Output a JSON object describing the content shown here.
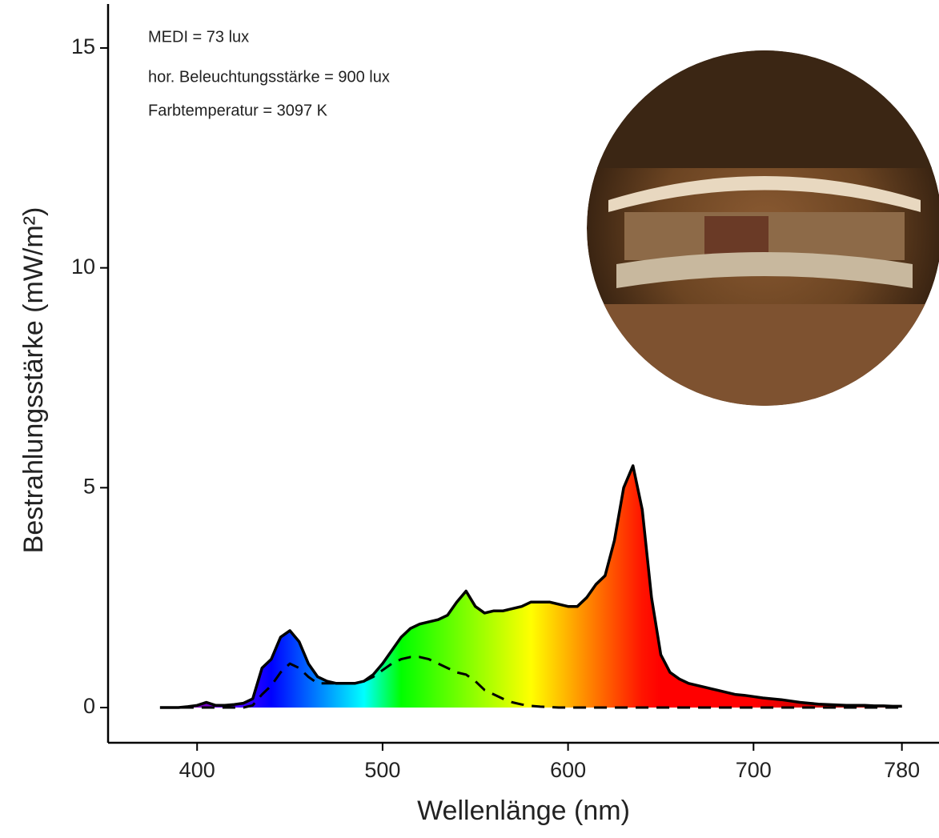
{
  "chart_data": {
    "type": "area",
    "annotations": [
      "MEDI = 73 lux",
      "hor. Beleuchtungsstärke = 900 lux",
      "Farbtemperatur = 3097 K"
    ],
    "x_label": "Wellenlänge (nm)",
    "y_label": "Bestrahlungsstärke (mW/m²)",
    "x": [
      380,
      385,
      390,
      395,
      400,
      405,
      410,
      415,
      420,
      425,
      430,
      435,
      440,
      445,
      450,
      455,
      460,
      465,
      470,
      475,
      480,
      485,
      490,
      495,
      500,
      505,
      510,
      515,
      520,
      525,
      530,
      535,
      540,
      545,
      550,
      555,
      560,
      565,
      570,
      575,
      580,
      585,
      590,
      595,
      600,
      605,
      610,
      615,
      620,
      625,
      630,
      635,
      640,
      645,
      650,
      655,
      660,
      665,
      670,
      675,
      680,
      685,
      690,
      695,
      700,
      705,
      710,
      715,
      720,
      725,
      730,
      735,
      740,
      745,
      750,
      755,
      760,
      765,
      770,
      775,
      780
    ],
    "series": [
      {
        "color": "#000000",
        "fill": "spectrum",
        "style": "solid",
        "values": [
          0,
          0,
          0,
          0.02,
          0.05,
          0.12,
          0.05,
          0.05,
          0.07,
          0.1,
          0.2,
          0.9,
          1.1,
          1.6,
          1.75,
          1.5,
          1.0,
          0.7,
          0.6,
          0.55,
          0.55,
          0.55,
          0.6,
          0.75,
          1.0,
          1.3,
          1.6,
          1.8,
          1.9,
          1.95,
          2.0,
          2.1,
          2.4,
          2.65,
          2.3,
          2.15,
          2.2,
          2.2,
          2.25,
          2.3,
          2.4,
          2.4,
          2.4,
          2.35,
          2.3,
          2.3,
          2.5,
          2.8,
          3.0,
          3.8,
          5.0,
          5.5,
          4.5,
          2.5,
          1.2,
          0.8,
          0.65,
          0.55,
          0.5,
          0.45,
          0.4,
          0.35,
          0.3,
          0.28,
          0.25,
          0.22,
          0.2,
          0.18,
          0.15,
          0.12,
          0.1,
          0.08,
          0.07,
          0.06,
          0.05,
          0.05,
          0.05,
          0.04,
          0.04,
          0.03,
          0.03
        ]
      },
      {
        "color": "#000000",
        "style": "dashed",
        "values": [
          0,
          0,
          0,
          0,
          0,
          0,
          0,
          0,
          0,
          0,
          0.05,
          0.3,
          0.5,
          0.8,
          1.0,
          0.9,
          0.7,
          0.55,
          0.55,
          0.55,
          0.55,
          0.55,
          0.6,
          0.7,
          0.85,
          1.0,
          1.1,
          1.15,
          1.15,
          1.1,
          1.0,
          0.9,
          0.8,
          0.75,
          0.6,
          0.4,
          0.3,
          0.2,
          0.12,
          0.07,
          0.04,
          0.02,
          0.01,
          0,
          0,
          0,
          0,
          0,
          0,
          0,
          0,
          0,
          0,
          0,
          0,
          0,
          0,
          0,
          0,
          0,
          0,
          0,
          0,
          0,
          0,
          0,
          0,
          0,
          0,
          0,
          0,
          0,
          0,
          0,
          0,
          0,
          0,
          0,
          0,
          0,
          0
        ]
      }
    ],
    "xlim": [
      352,
      800
    ],
    "ylim": [
      -0.8,
      16
    ],
    "xticks": [
      400,
      500,
      600,
      700,
      780
    ],
    "yticks": [
      0,
      5,
      10,
      15
    ]
  }
}
